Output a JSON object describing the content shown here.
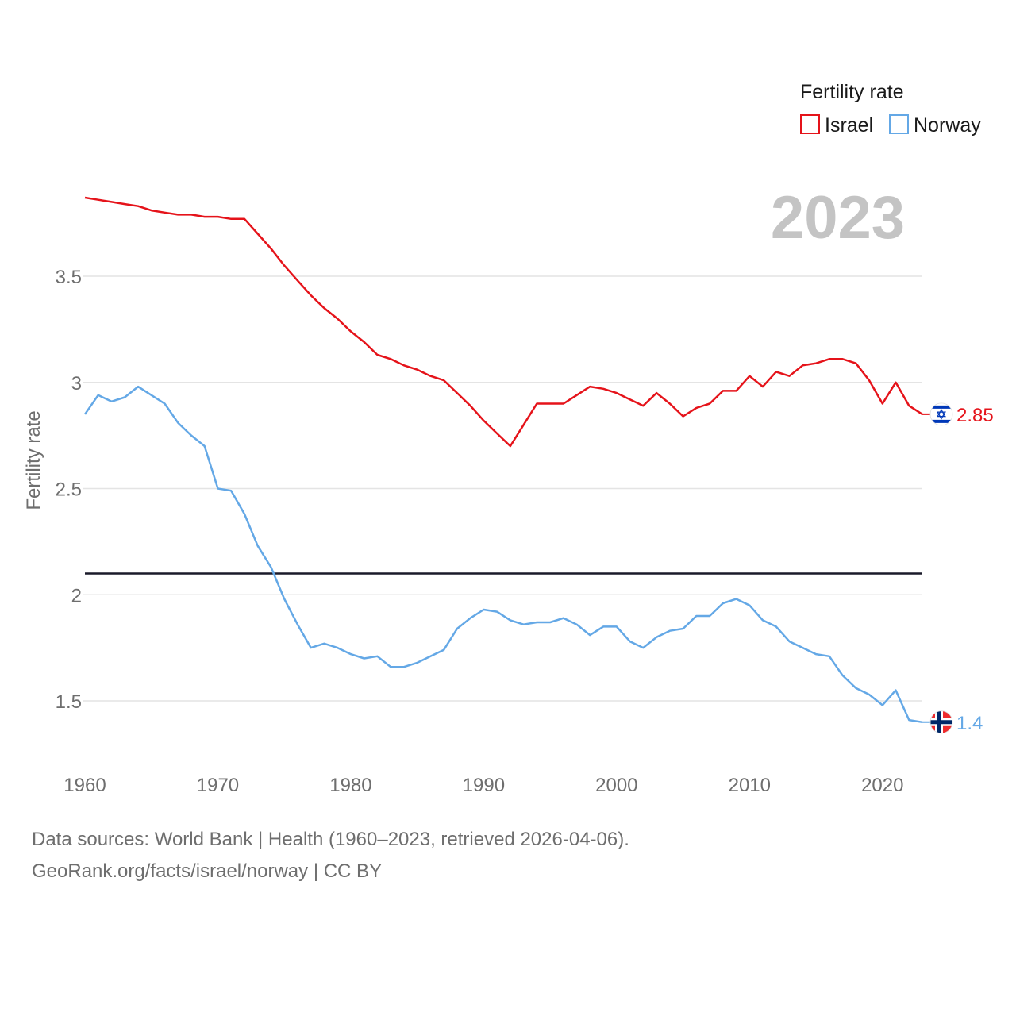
{
  "chart_data": {
    "type": "line",
    "year_label": "2023",
    "ylabel": "Fertility rate",
    "xlabel": "",
    "xlim": [
      1960,
      2023
    ],
    "ylim": [
      1.25,
      3.9
    ],
    "x_ticks": [
      "1960",
      "1970",
      "1980",
      "1990",
      "2000",
      "2010",
      "2020"
    ],
    "y_ticks": [
      "1.5",
      "2",
      "2.5",
      "3",
      "3.5"
    ],
    "grid": true,
    "reference_line": 2.1,
    "legend": {
      "title": "Fertility rate",
      "position": "top-right"
    },
    "x": [
      1960,
      1961,
      1962,
      1963,
      1964,
      1965,
      1966,
      1967,
      1968,
      1969,
      1970,
      1971,
      1972,
      1973,
      1974,
      1975,
      1976,
      1977,
      1978,
      1979,
      1980,
      1981,
      1982,
      1983,
      1984,
      1985,
      1986,
      1987,
      1988,
      1989,
      1990,
      1991,
      1992,
      1993,
      1994,
      1995,
      1996,
      1997,
      1998,
      1999,
      2000,
      2001,
      2002,
      2003,
      2004,
      2005,
      2006,
      2007,
      2008,
      2009,
      2010,
      2011,
      2012,
      2013,
      2014,
      2015,
      2016,
      2017,
      2018,
      2019,
      2020,
      2021,
      2022,
      2023
    ],
    "series": [
      {
        "name": "Israel",
        "color": "#e5131a",
        "end_label": "2.85",
        "values": [
          3.87,
          3.86,
          3.85,
          3.84,
          3.83,
          3.81,
          3.8,
          3.79,
          3.79,
          3.78,
          3.78,
          3.77,
          3.77,
          3.7,
          3.63,
          3.55,
          3.48,
          3.41,
          3.35,
          3.3,
          3.24,
          3.19,
          3.13,
          3.11,
          3.08,
          3.06,
          3.03,
          3.01,
          2.95,
          2.89,
          2.82,
          2.76,
          2.7,
          2.8,
          2.9,
          2.9,
          2.9,
          2.94,
          2.98,
          2.97,
          2.95,
          2.92,
          2.89,
          2.95,
          2.9,
          2.84,
          2.88,
          2.9,
          2.96,
          2.96,
          3.03,
          2.98,
          3.05,
          3.03,
          3.08,
          3.09,
          3.11,
          3.11,
          3.09,
          3.01,
          2.9,
          3.0,
          2.89,
          2.85
        ]
      },
      {
        "name": "Norway",
        "color": "#64a8e6",
        "end_label": "1.4",
        "values": [
          2.85,
          2.94,
          2.91,
          2.93,
          2.98,
          2.94,
          2.9,
          2.81,
          2.75,
          2.7,
          2.5,
          2.49,
          2.38,
          2.23,
          2.13,
          1.98,
          1.86,
          1.75,
          1.77,
          1.75,
          1.72,
          1.7,
          1.71,
          1.66,
          1.66,
          1.68,
          1.71,
          1.74,
          1.84,
          1.89,
          1.93,
          1.92,
          1.88,
          1.86,
          1.87,
          1.87,
          1.89,
          1.86,
          1.81,
          1.85,
          1.85,
          1.78,
          1.75,
          1.8,
          1.83,
          1.84,
          1.9,
          1.9,
          1.96,
          1.98,
          1.95,
          1.88,
          1.85,
          1.78,
          1.75,
          1.72,
          1.71,
          1.62,
          1.56,
          1.53,
          1.48,
          1.55,
          1.41,
          1.4
        ]
      }
    ]
  },
  "footer": {
    "line1": "Data sources: World Bank | Health (1960–2023, retrieved 2026-04-06).",
    "line2": "GeoRank.org/facts/israel/norway | CC BY"
  },
  "icons": {
    "israel_flag": "israel-flag-icon",
    "norway_flag": "norway-flag-icon"
  }
}
